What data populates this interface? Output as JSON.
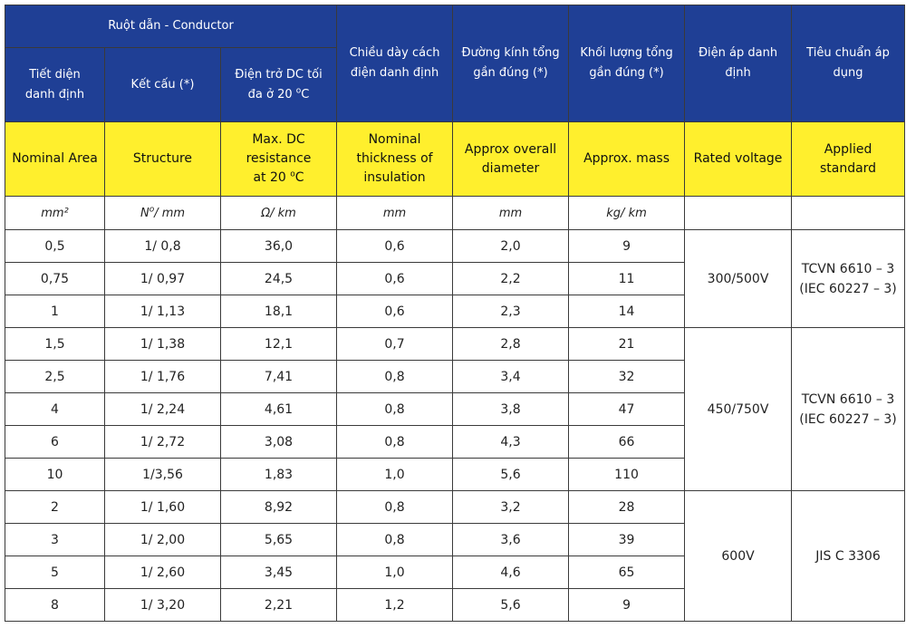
{
  "header": {
    "group_label": "Ruột dẫn - Conductor",
    "vi": {
      "area": [
        "Tiết diện",
        "danh định"
      ],
      "structure": "Kết cấu (*)",
      "resistance": [
        "Điện trở DC tối",
        "đa ở 20"
      ],
      "thickness": [
        "Chiều dày cách",
        "điện danh định"
      ],
      "diameter": [
        "Đường kính tổng",
        "gần đúng (*)"
      ],
      "mass": [
        "Khối lượng tổng",
        "gần đúng (*)"
      ],
      "voltage": [
        "Điện áp danh",
        "định"
      ],
      "standard": [
        "Tiêu chuẩn áp",
        "dụng"
      ]
    },
    "en": {
      "area": "Nominal Area",
      "structure": "Structure",
      "resistance": [
        "Max. DC",
        "resistance",
        "at 20"
      ],
      "thickness": [
        "Nominal",
        "thickness of",
        "insulation"
      ],
      "diameter": [
        "Approx overall",
        "diameter"
      ],
      "mass": "Approx. mass",
      "voltage": "Rated voltage",
      "standard": [
        "Applied",
        "standard"
      ]
    },
    "degree_sup": "o",
    "degree_unit": "C"
  },
  "units": {
    "area": "mm²",
    "structure_no": "N",
    "structure_sup": "o",
    "structure_rest": "/ mm",
    "resistance": "Ω/ km",
    "thickness": "mm",
    "diameter": "mm",
    "mass": "kg/ km"
  },
  "rows": [
    {
      "area": "0,5",
      "structure": "1/ 0,8",
      "resistance": "36,0",
      "thickness": "0,6",
      "diameter": "2,0",
      "mass": "9"
    },
    {
      "area": "0,75",
      "structure": "1/ 0,97",
      "resistance": "24,5",
      "thickness": "0,6",
      "diameter": "2,2",
      "mass": "11"
    },
    {
      "area": "1",
      "structure": "1/ 1,13",
      "resistance": "18,1",
      "thickness": "0,6",
      "diameter": "2,3",
      "mass": "14"
    },
    {
      "area": "1,5",
      "structure": "1/ 1,38",
      "resistance": "12,1",
      "thickness": "0,7",
      "diameter": "2,8",
      "mass": "21"
    },
    {
      "area": "2,5",
      "structure": "1/ 1,76",
      "resistance": "7,41",
      "thickness": "0,8",
      "diameter": "3,4",
      "mass": "32"
    },
    {
      "area": "4",
      "structure": "1/ 2,24",
      "resistance": "4,61",
      "thickness": "0,8",
      "diameter": "3,8",
      "mass": "47"
    },
    {
      "area": "6",
      "structure": "1/ 2,72",
      "resistance": "3,08",
      "thickness": "0,8",
      "diameter": "4,3",
      "mass": "66"
    },
    {
      "area": "10",
      "structure": "1/3,56",
      "resistance": "1,83",
      "thickness": "1,0",
      "diameter": "5,6",
      "mass": "110"
    },
    {
      "area": "2",
      "structure": "1/ 1,60",
      "resistance": "8,92",
      "thickness": "0,8",
      "diameter": "3,2",
      "mass": "28"
    },
    {
      "area": "3",
      "structure": "1/ 2,00",
      "resistance": "5,65",
      "thickness": "0,8",
      "diameter": "3,6",
      "mass": "39"
    },
    {
      "area": "5",
      "structure": "1/ 2,60",
      "resistance": "3,45",
      "thickness": "1,0",
      "diameter": "4,6",
      "mass": "65"
    },
    {
      "area": "8",
      "structure": "1/ 3,20",
      "resistance": "2,21",
      "thickness": "1,2",
      "diameter": "5,6",
      "mass": "9"
    }
  ],
  "groups": [
    {
      "voltage": "300/500V",
      "standard": [
        "TCVN 6610 – 3",
        "(IEC 60227 – 3)"
      ]
    },
    {
      "voltage": "450/750V",
      "standard": [
        "TCVN 6610 – 3",
        "(IEC 60227 – 3)"
      ]
    },
    {
      "voltage": "600V",
      "standard": [
        "JIS C 3306"
      ]
    }
  ]
}
